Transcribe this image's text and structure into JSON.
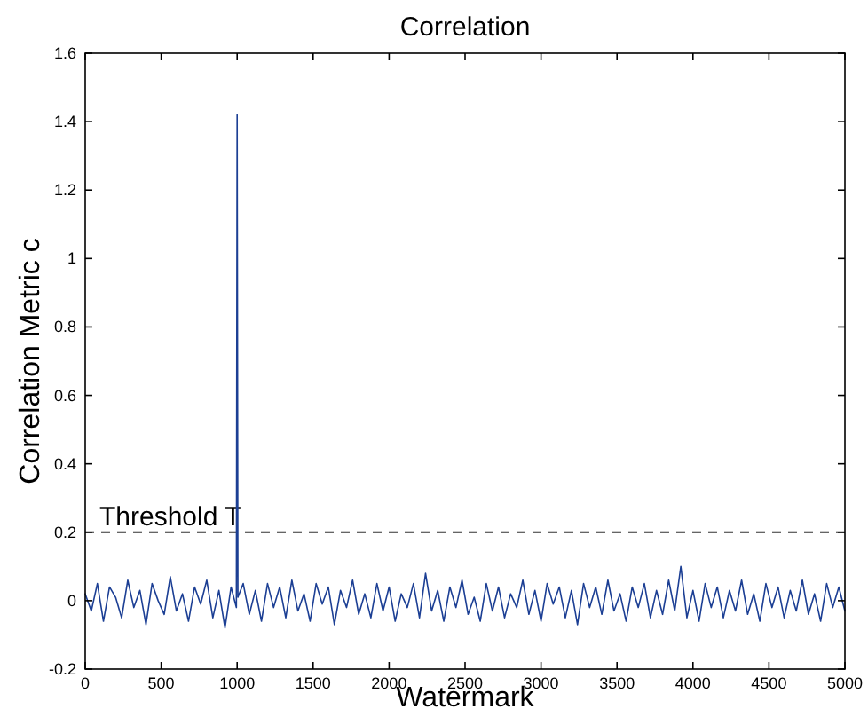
{
  "chart_data": {
    "type": "line",
    "title": "Correlation",
    "xlabel": "Watermark",
    "ylabel": "Correlation Metric  c",
    "xlim": [
      0,
      5000
    ],
    "xticks": [
      0,
      500,
      1000,
      1500,
      2000,
      2500,
      3000,
      3500,
      4000,
      4500,
      5000
    ],
    "ylim": [
      -0.2,
      1.6
    ],
    "yticks": [
      -0.2,
      0,
      0.2,
      0.4,
      0.6,
      0.8,
      1,
      1.2,
      1.4,
      1.6
    ],
    "grid": false,
    "marker": "none",
    "line_style": "solid",
    "ref_lines": [
      {
        "axis": "y",
        "value": 0.2,
        "label": "Threshold T",
        "color": "#333333",
        "line_style": "dashed"
      }
    ],
    "series": [
      {
        "color": "#1c3f94",
        "x": [
          0,
          40,
          80,
          120,
          160,
          200,
          240,
          280,
          320,
          360,
          400,
          440,
          480,
          520,
          560,
          600,
          640,
          680,
          720,
          760,
          800,
          840,
          880,
          920,
          960,
          995,
          1000,
          1005,
          1040,
          1080,
          1120,
          1160,
          1200,
          1240,
          1280,
          1320,
          1360,
          1400,
          1440,
          1480,
          1520,
          1560,
          1600,
          1640,
          1680,
          1720,
          1760,
          1800,
          1840,
          1880,
          1920,
          1960,
          2000,
          2040,
          2080,
          2120,
          2160,
          2200,
          2240,
          2280,
          2320,
          2360,
          2400,
          2440,
          2480,
          2520,
          2560,
          2600,
          2640,
          2680,
          2720,
          2760,
          2800,
          2840,
          2880,
          2920,
          2960,
          3000,
          3040,
          3080,
          3120,
          3160,
          3200,
          3240,
          3280,
          3320,
          3360,
          3400,
          3440,
          3480,
          3520,
          3560,
          3600,
          3640,
          3680,
          3720,
          3760,
          3800,
          3840,
          3880,
          3920,
          3960,
          4000,
          4040,
          4080,
          4120,
          4160,
          4200,
          4240,
          4280,
          4320,
          4360,
          4400,
          4440,
          4480,
          4520,
          4560,
          4600,
          4640,
          4680,
          4720,
          4760,
          4800,
          4840,
          4880,
          4920,
          4960,
          5000
        ],
        "values": [
          0.02,
          -0.03,
          0.05,
          -0.06,
          0.04,
          0.01,
          -0.05,
          0.06,
          -0.02,
          0.03,
          -0.07,
          0.05,
          0.0,
          -0.04,
          0.07,
          -0.03,
          0.02,
          -0.06,
          0.04,
          -0.01,
          0.06,
          -0.05,
          0.03,
          -0.08,
          0.04,
          -0.02,
          1.42,
          0.01,
          0.05,
          -0.04,
          0.03,
          -0.06,
          0.05,
          -0.02,
          0.04,
          -0.05,
          0.06,
          -0.03,
          0.02,
          -0.06,
          0.05,
          -0.01,
          0.04,
          -0.07,
          0.03,
          -0.02,
          0.06,
          -0.04,
          0.02,
          -0.05,
          0.05,
          -0.03,
          0.04,
          -0.06,
          0.02,
          -0.02,
          0.05,
          -0.05,
          0.08,
          -0.03,
          0.03,
          -0.06,
          0.04,
          -0.02,
          0.06,
          -0.04,
          0.01,
          -0.06,
          0.05,
          -0.03,
          0.04,
          -0.05,
          0.02,
          -0.02,
          0.06,
          -0.04,
          0.03,
          -0.06,
          0.05,
          -0.01,
          0.04,
          -0.05,
          0.03,
          -0.07,
          0.05,
          -0.02,
          0.04,
          -0.04,
          0.06,
          -0.03,
          0.02,
          -0.06,
          0.04,
          -0.02,
          0.05,
          -0.05,
          0.03,
          -0.04,
          0.06,
          -0.03,
          0.1,
          -0.05,
          0.03,
          -0.06,
          0.05,
          -0.02,
          0.04,
          -0.05,
          0.03,
          -0.03,
          0.06,
          -0.04,
          0.02,
          -0.06,
          0.05,
          -0.02,
          0.04,
          -0.05,
          0.03,
          -0.03,
          0.06,
          -0.04,
          0.02,
          -0.06,
          0.05,
          -0.02,
          0.04,
          -0.03
        ]
      }
    ]
  }
}
